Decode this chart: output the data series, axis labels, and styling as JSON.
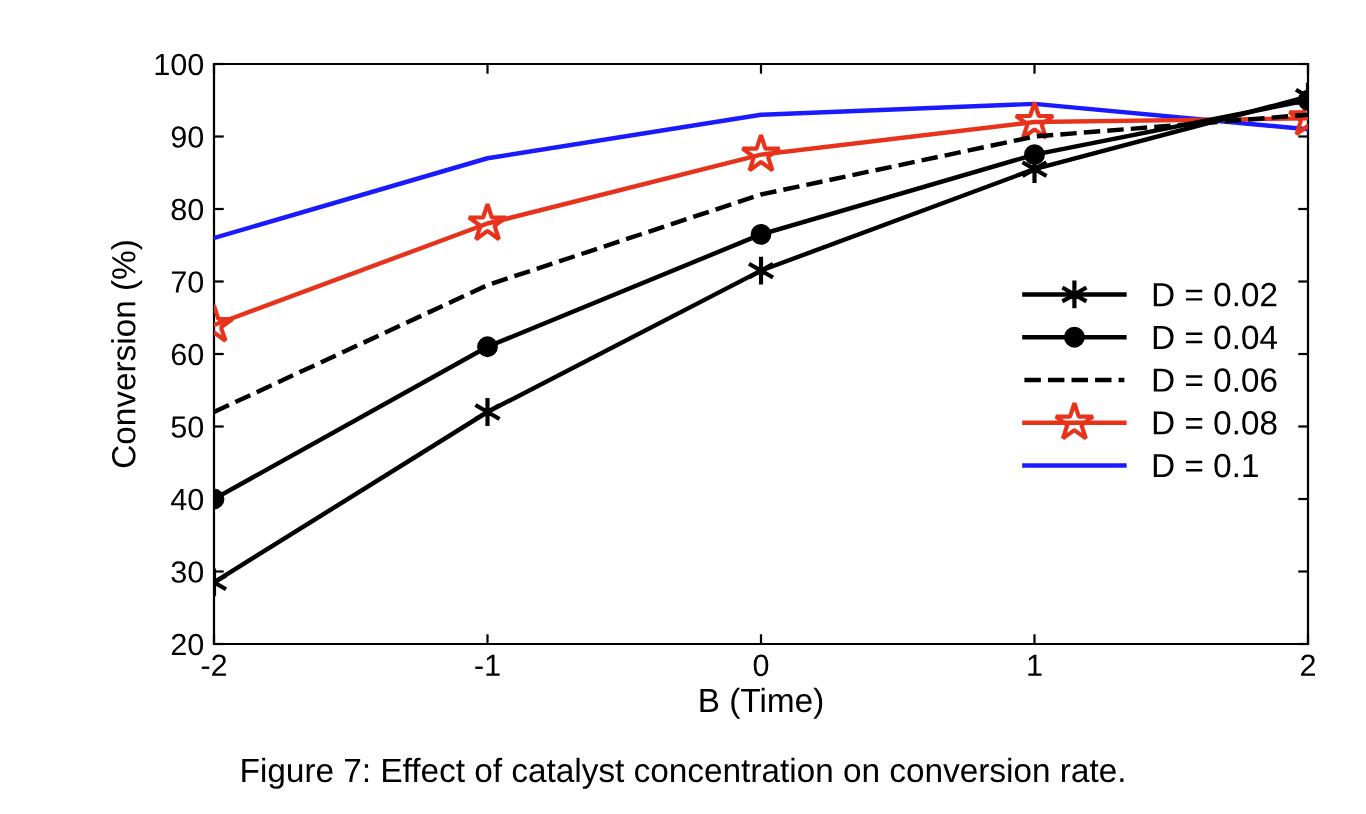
{
  "chart_data": {
    "type": "line",
    "xlabel": "B (Time)",
    "ylabel": "Conversion (%)",
    "x": [
      -2,
      -1,
      0,
      1,
      2
    ],
    "series": [
      {
        "name": "D = 0.02",
        "color": "#000000",
        "marker": "cross",
        "line_style": "solid",
        "values": [
          28.5,
          52,
          71.5,
          85.5,
          95.5
        ]
      },
      {
        "name": "D = 0.04",
        "color": "#000000",
        "marker": "circle",
        "line_style": "solid",
        "values": [
          40,
          61,
          76.5,
          87.5,
          95
        ]
      },
      {
        "name": "D = 0.06",
        "color": "#000000",
        "marker": "none",
        "line_style": "dashed",
        "values": [
          52,
          69.5,
          82,
          90,
          93
        ]
      },
      {
        "name": "D = 0.08",
        "color": "#e8331c",
        "marker": "star",
        "line_style": "solid",
        "values": [
          64,
          78,
          87.5,
          92,
          92.5
        ]
      },
      {
        "name": "D = 0.1",
        "color": "#1a1aff",
        "marker": "none",
        "line_style": "solid",
        "values": [
          76,
          87,
          93,
          94.5,
          91
        ]
      }
    ],
    "xlim": [
      -2,
      2
    ],
    "xticks": [
      -2,
      -1,
      0,
      1,
      2
    ],
    "ylim": [
      20,
      100
    ],
    "yticks": [
      20,
      30,
      40,
      50,
      60,
      70,
      80,
      90,
      100
    ],
    "grid": false,
    "legend": "right",
    "annotations": [
      "Figure 7: Effect of catalyst concentration on conversion rate."
    ]
  }
}
